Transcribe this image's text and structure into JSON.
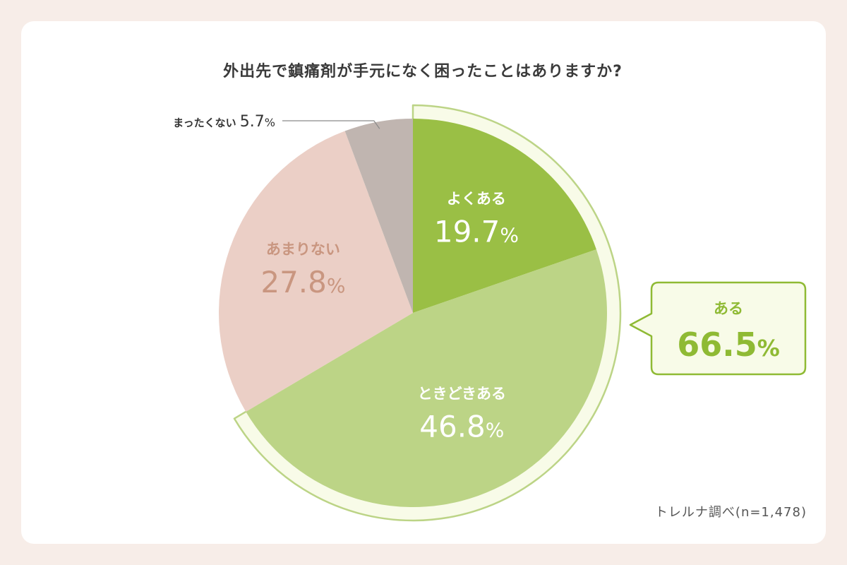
{
  "chart_data": {
    "type": "pie",
    "title": "外出先で鎮痛剤が手元になく困ったことはありますか?",
    "slices": [
      {
        "label": "よくある",
        "value": 19.7,
        "color": "#9abf45",
        "text_color": "#ffffff"
      },
      {
        "label": "ときどきある",
        "value": 46.8,
        "color": "#bcd486",
        "text_color": "#ffffff"
      },
      {
        "label": "あまりない",
        "value": 27.8,
        "color": "#ebcfc6",
        "text_color": "#c99680"
      },
      {
        "label": "まったくない",
        "value": 5.7,
        "color": "#c0b5b0",
        "text_color": "#333333"
      }
    ],
    "group_annotation": {
      "label": "ある",
      "value": 66.5,
      "color": "#8fba34",
      "box_fill": "#f8fbe8",
      "members": [
        "よくある",
        "ときどきある"
      ]
    },
    "source_note": "トレルナ調べ(n=1,478)",
    "start_angle": "12 o'clock",
    "direction": "clockwise",
    "percent_sign": "%"
  }
}
